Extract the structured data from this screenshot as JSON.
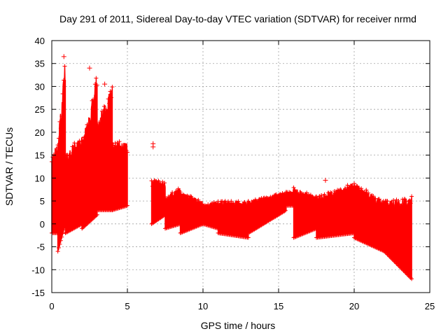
{
  "chart_data": {
    "type": "scatter",
    "title": "Day 291 of 2011, Sidereal Day-to-day VTEC variation (SDTVAR) for receiver nrmd",
    "xlabel": "GPS time / hours",
    "ylabel": "SDTVAR / TECUs",
    "xlim": [
      0,
      25
    ],
    "ylim": [
      -15,
      40
    ],
    "xticks": [
      0,
      5,
      10,
      15,
      20,
      25
    ],
    "yticks": [
      -15,
      -10,
      -5,
      0,
      5,
      10,
      15,
      20,
      25,
      30,
      35,
      40
    ],
    "grid": true,
    "marker": "+",
    "color": "#ff0000",
    "series": [
      {
        "name": "SDTVAR",
        "segments": [
          {
            "x_range": [
              0.0,
              0.4
            ],
            "low": [
              -2,
              -2
            ],
            "high": [
              15,
              18
            ]
          },
          {
            "x_range": [
              0.4,
              0.9
            ],
            "low": [
              -6,
              0
            ],
            "high": [
              18,
              36
            ]
          },
          {
            "x_range": [
              0.9,
              2.0
            ],
            "low": [
              -2,
              0
            ],
            "high": [
              15,
              20
            ]
          },
          {
            "x_range": [
              2.0,
              3.0
            ],
            "low": [
              -1,
              2
            ],
            "high": [
              18,
              33
            ]
          },
          {
            "x_range": [
              3.0,
              4.0
            ],
            "low": [
              3,
              3
            ],
            "high": [
              23,
              30
            ]
          },
          {
            "x_range": [
              4.0,
              5.0
            ],
            "low": [
              3,
              4
            ],
            "high": [
              18,
              18
            ]
          },
          {
            "x_range": [
              6.6,
              7.5
            ],
            "low": [
              0,
              2
            ],
            "high": [
              10,
              9
            ]
          },
          {
            "x_range": [
              7.5,
              8.5
            ],
            "low": [
              -1,
              0
            ],
            "high": [
              6,
              8
            ]
          },
          {
            "x_range": [
              8.5,
              10.0
            ],
            "low": [
              -2,
              0
            ],
            "high": [
              7,
              5
            ]
          },
          {
            "x_range": [
              10.0,
              11.0
            ],
            "low": [
              0,
              -1
            ],
            "high": [
              4,
              5
            ]
          },
          {
            "x_range": [
              11.0,
              13.0
            ],
            "low": [
              -2,
              -3
            ],
            "high": [
              5,
              5
            ]
          },
          {
            "x_range": [
              13.0,
              15.5
            ],
            "low": [
              -2,
              3
            ],
            "high": [
              5,
              7
            ]
          },
          {
            "x_range": [
              15.5,
              16.0
            ],
            "low": [
              4,
              4
            ],
            "high": [
              7,
              7
            ]
          },
          {
            "x_range": [
              16.0,
              17.5
            ],
            "low": [
              -3,
              -1
            ],
            "high": [
              8,
              6
            ]
          },
          {
            "x_range": [
              17.5,
              20.0
            ],
            "low": [
              -3,
              -2
            ],
            "high": [
              6,
              9
            ]
          },
          {
            "x_range": [
              20.0,
              22.0
            ],
            "low": [
              -3,
              -6
            ],
            "high": [
              9,
              5
            ]
          },
          {
            "x_range": [
              22.0,
              23.8
            ],
            "low": [
              -6,
              -12
            ],
            "high": [
              5,
              6
            ]
          }
        ],
        "outliers": [
          {
            "x": 6.7,
            "y": 17.5
          },
          {
            "x": 6.7,
            "y": 16.8
          },
          {
            "x": 18.1,
            "y": 9.5
          },
          {
            "x": 0.8,
            "y": 36.5
          },
          {
            "x": 2.5,
            "y": 34
          },
          {
            "x": 3.5,
            "y": 30.5
          }
        ]
      }
    ]
  }
}
